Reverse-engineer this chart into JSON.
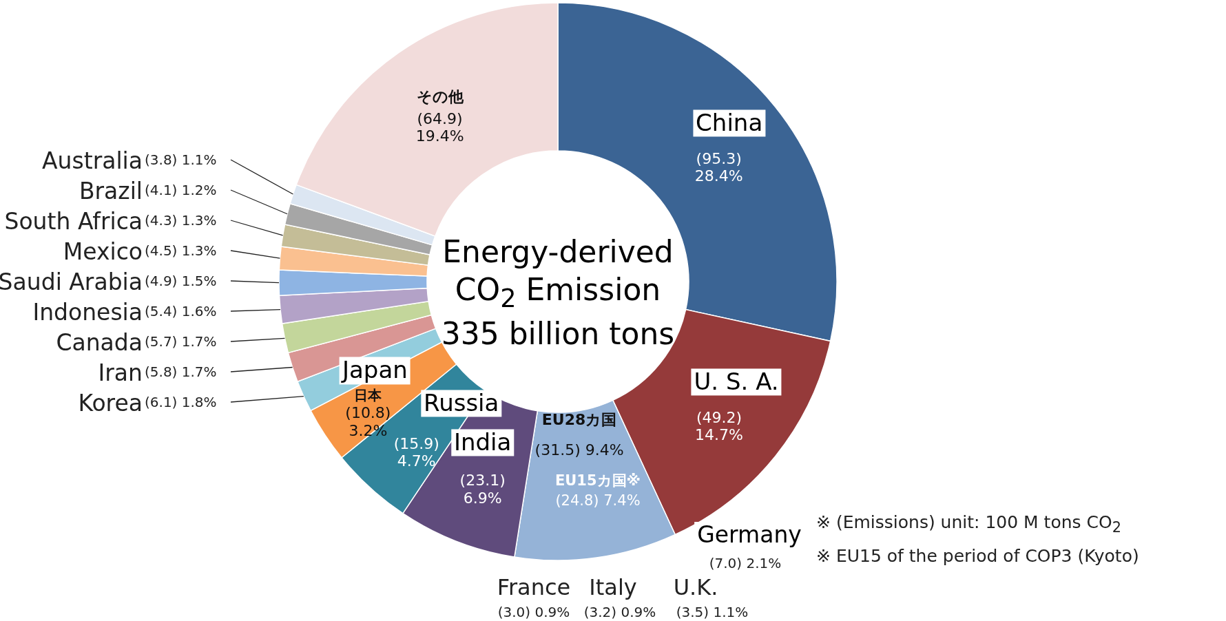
{
  "chart_data": {
    "type": "donut",
    "title": "Energy-derived CO$_{2}$ Emission",
    "subtitle": "335 billion tons",
    "categories": [
      "China",
      "U. S. A.",
      "EU28カ国",
      "India",
      "Russia",
      "Japan",
      "Korea",
      "Iran",
      "Canada",
      "Indonesia",
      "Saudi Arabia",
      "Mexico",
      "South Africa",
      "Brazil",
      "Australia",
      "その他"
    ],
    "values": [
      95.3,
      49.2,
      31.5,
      23.1,
      15.9,
      10.8,
      6.1,
      5.8,
      5.7,
      5.4,
      4.9,
      4.5,
      4.3,
      4.1,
      3.8,
      64.9
    ],
    "colors": [
      "#3b6494",
      "#953a3a",
      "#95b3d7",
      "#5f4b7c",
      "#31859c",
      "#f79646",
      "#93cddd",
      "#d99694",
      "#c3d69b",
      "#b3a2c7",
      "#8eb4e3",
      "#fac090",
      "#c4bd97",
      "#a6a6a6",
      "#dce6f2",
      "#f2dcdb"
    ],
    "value_labels": [
      "(95.3) 28.4%",
      "(49.2) 14.7%",
      "(31.5) 9.4%",
      "(23.1) 6.9%",
      "(15.9) 4.7%",
      "(10.8) 3.2%",
      "(6.1) 1.8%",
      "(5.8) 1.7%",
      "(5.7) 1.7%",
      "(5.4) 1.6%",
      "(4.9) 1.5%",
      "(4.5) 1.3%",
      "(4.3) 1.3%",
      "(4.1) 1.2%",
      "(3.8) 1.1%",
      "(64.9) 19.4%"
    ],
    "annotations": [
      "日本",
      "EU15カ国※",
      "(24.8) 7.4%",
      "Germany",
      "(7.0) 2.1%",
      "France",
      "(3.0) 0.9%",
      "Italy",
      "(3.2) 0.9%",
      "U.K.",
      "(3.5) 1.1%",
      "※ (Emissions) unit: 100 M tons CO$_{2}$",
      "※ EU15 of the period of COP3 (Kyoto)"
    ]
  }
}
